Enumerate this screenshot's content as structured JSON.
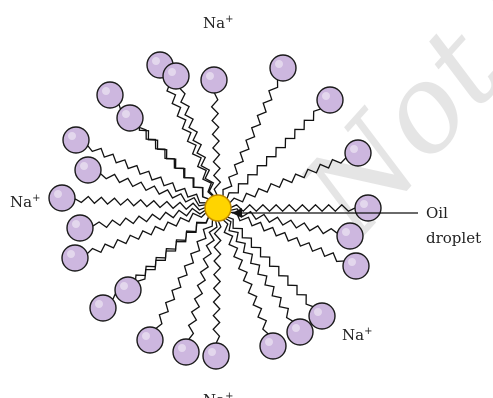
{
  "labels": {
    "na_top": "Na",
    "na_left": "Na",
    "na_right": "Na",
    "na_bottom": "Na",
    "charge": "+",
    "oil_line1": "Oil",
    "oil_line2": "droplet"
  },
  "watermark": "Not to be",
  "colors": {
    "head_fill": "#cdb7df",
    "head_stroke": "#1a1a1a",
    "core_fill": "#ffd400",
    "core_stroke": "#c08a00",
    "tail": "#111111",
    "watermark": "#d0d0d0"
  },
  "micelle": {
    "molecule_count": 24,
    "head_shape": "circle",
    "tail_shape": "zigzag"
  }
}
